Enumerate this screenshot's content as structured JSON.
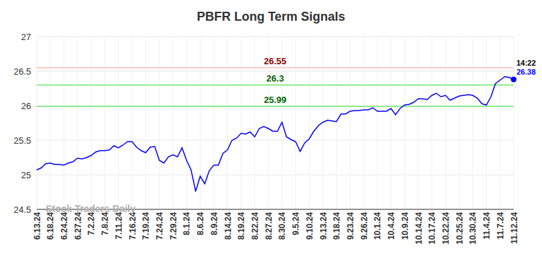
{
  "chart_data": {
    "type": "line",
    "title": "PBFR Long Term Signals",
    "watermark": "Stock Traders Daily",
    "categories": [
      "6.13.24",
      null,
      null,
      "6.18.24",
      null,
      null,
      "6.24.24",
      null,
      null,
      "6.27.24",
      null,
      null,
      "7.2.24",
      null,
      null,
      "7.8.24",
      null,
      null,
      "7.11.24",
      null,
      null,
      "7.16.24",
      null,
      null,
      "7.19.24",
      null,
      null,
      "7.24.24",
      null,
      null,
      "7.29.24",
      null,
      null,
      "8.1.24",
      null,
      null,
      "8.6.24",
      null,
      null,
      "8.9.24",
      null,
      null,
      "8.14.24",
      null,
      null,
      "8.19.24",
      null,
      null,
      "8.22.24",
      null,
      null,
      "8.27.24",
      null,
      null,
      "8.30.24",
      null,
      null,
      "9.5.24",
      null,
      null,
      "9.10.24",
      null,
      null,
      "9.13.24",
      null,
      null,
      "9.18.24",
      null,
      null,
      "9.23.24",
      null,
      null,
      "9.26.24",
      null,
      null,
      "10.1.24",
      null,
      null,
      "10.4.24",
      null,
      null,
      "10.9.24",
      null,
      null,
      "10.14.24",
      null,
      null,
      "10.17.24",
      null,
      null,
      "10.22.24",
      null,
      null,
      "10.25.24",
      null,
      null,
      "10.30.24",
      null,
      null,
      "11.4.24",
      null,
      null,
      "11.7.24",
      null,
      null,
      "11.12.24"
    ],
    "values": [
      25.07,
      25.1,
      25.16,
      25.17,
      25.15,
      25.15,
      25.14,
      25.17,
      25.19,
      25.24,
      25.23,
      25.25,
      25.28,
      25.33,
      25.35,
      25.35,
      25.36,
      25.42,
      25.39,
      25.43,
      25.48,
      25.48,
      25.4,
      25.35,
      25.32,
      25.4,
      25.41,
      25.21,
      25.17,
      25.26,
      25.29,
      25.26,
      25.39,
      25.21,
      25.07,
      24.76,
      24.98,
      24.87,
      25.06,
      25.14,
      25.14,
      25.31,
      25.36,
      25.5,
      25.53,
      25.6,
      25.59,
      25.62,
      25.55,
      25.67,
      25.7,
      25.67,
      25.63,
      25.63,
      25.76,
      25.55,
      25.51,
      25.48,
      25.34,
      25.46,
      25.52,
      25.63,
      25.71,
      25.76,
      25.79,
      25.78,
      25.77,
      25.88,
      25.88,
      25.92,
      25.93,
      25.93,
      25.94,
      25.94,
      25.97,
      25.92,
      25.92,
      25.92,
      25.96,
      25.87,
      25.96,
      26.01,
      26.02,
      26.05,
      26.1,
      26.1,
      26.09,
      26.15,
      26.18,
      26.13,
      26.15,
      26.08,
      26.11,
      26.14,
      26.15,
      26.16,
      26.15,
      26.11,
      26.03,
      26.01,
      26.13,
      26.32,
      26.37,
      26.42,
      26.41,
      26.38
    ],
    "color": "#0000ff",
    "ylim": [
      24.5,
      27
    ],
    "yticks": [
      24.5,
      25,
      25.5,
      26,
      26.5,
      27
    ],
    "grid": true,
    "reference_lines": [
      {
        "value": 26.55,
        "label": "26.55",
        "color": "#ffcccc",
        "label_color": "#8b0000"
      },
      {
        "value": 26.3,
        "label": "26.3",
        "color": "#90ee90",
        "label_color": "#006400"
      },
      {
        "value": 25.99,
        "label": "25.99",
        "color": "#90ee90",
        "label_color": "#006400"
      }
    ],
    "last_point": {
      "time": "14:22",
      "label": "26.38",
      "value": 26.38
    }
  }
}
